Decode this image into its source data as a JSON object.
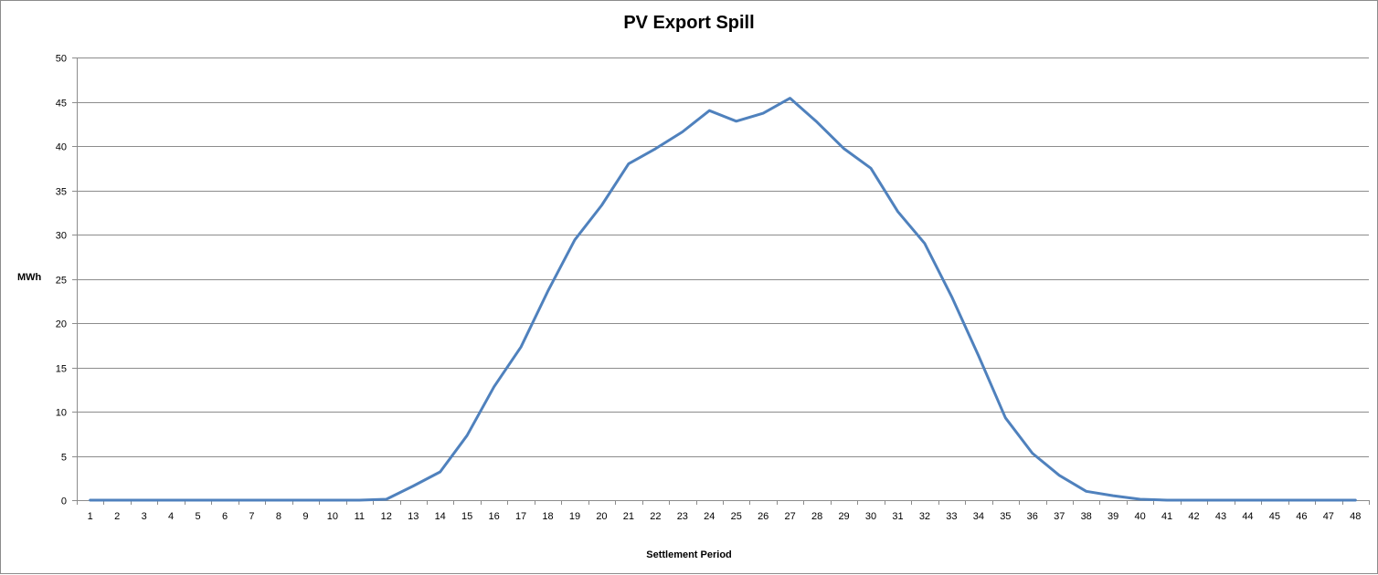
{
  "chart_data": {
    "type": "line",
    "title": "PV Export Spill",
    "xlabel": "Settlement Period",
    "ylabel": "MWh",
    "ylim": [
      0,
      50
    ],
    "ytick_step": 5,
    "grid": true,
    "legend": "none",
    "categories": [
      "1",
      "2",
      "3",
      "4",
      "5",
      "6",
      "7",
      "8",
      "9",
      "10",
      "11",
      "12",
      "13",
      "14",
      "15",
      "16",
      "17",
      "18",
      "19",
      "20",
      "21",
      "22",
      "23",
      "24",
      "25",
      "26",
      "27",
      "28",
      "29",
      "30",
      "31",
      "32",
      "33",
      "34",
      "35",
      "36",
      "37",
      "38",
      "39",
      "40",
      "41",
      "42",
      "43",
      "44",
      "45",
      "46",
      "47",
      "48"
    ],
    "series": [
      {
        "color": "#4f81bd",
        "values": [
          0,
          0,
          0,
          0,
          0,
          0,
          0,
          0,
          0,
          0,
          0,
          0.1,
          1.6,
          3.2,
          7.3,
          12.8,
          17.3,
          23.6,
          29.4,
          33.3,
          38.0,
          39.7,
          41.6,
          44.0,
          42.8,
          43.7,
          45.4,
          42.7,
          39.7,
          37.5,
          32.6,
          29.0,
          23.0,
          16.3,
          9.3,
          5.3,
          2.8,
          1.0,
          0.5,
          0.1,
          0,
          0,
          0,
          0,
          0,
          0,
          0,
          0
        ]
      }
    ]
  }
}
